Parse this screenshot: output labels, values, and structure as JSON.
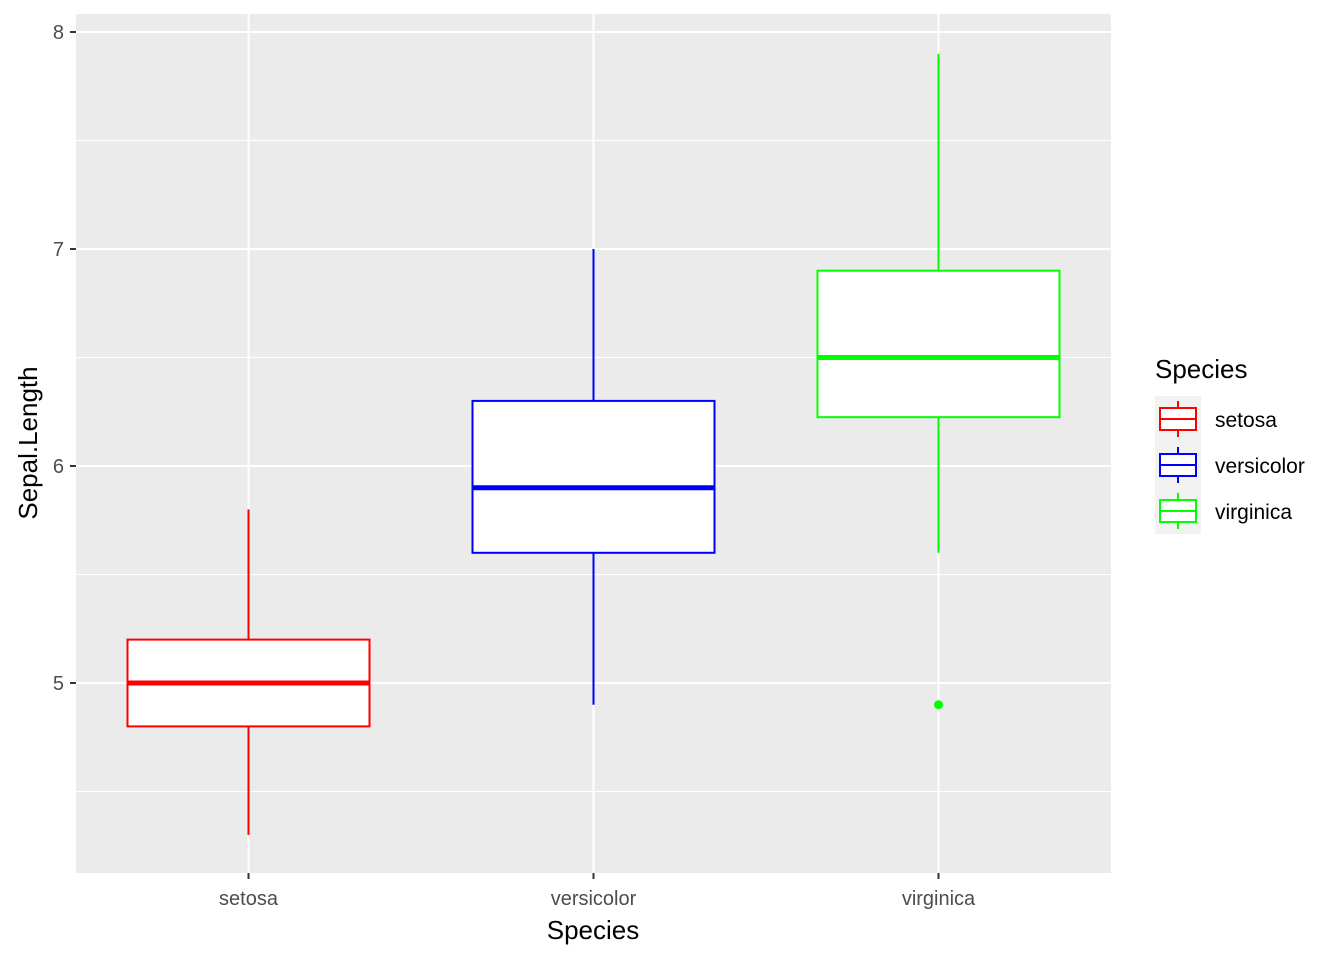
{
  "chart_data": {
    "type": "boxplot",
    "xlabel": "Species",
    "ylabel": "Sepal.Length",
    "ylim": [
      4.2,
      8.1
    ],
    "y_ticks": [
      5,
      6,
      7,
      8
    ],
    "grid": true,
    "legend": {
      "title": "Species",
      "position": "right"
    },
    "categories": [
      "setosa",
      "versicolor",
      "virginica"
    ],
    "series": [
      {
        "name": "setosa",
        "color": "#ff0000",
        "min": 4.3,
        "q1": 4.8,
        "median": 5.0,
        "q3": 5.2,
        "max": 5.8,
        "outliers": []
      },
      {
        "name": "versicolor",
        "color": "#0000ff",
        "min": 4.9,
        "q1": 5.6,
        "median": 5.9,
        "q3": 6.3,
        "max": 7.0,
        "outliers": []
      },
      {
        "name": "virginica",
        "color": "#00ff00",
        "min": 5.6,
        "q1": 6.225,
        "median": 6.5,
        "q3": 6.9,
        "max": 7.9,
        "outliers": [
          4.9
        ]
      }
    ]
  }
}
